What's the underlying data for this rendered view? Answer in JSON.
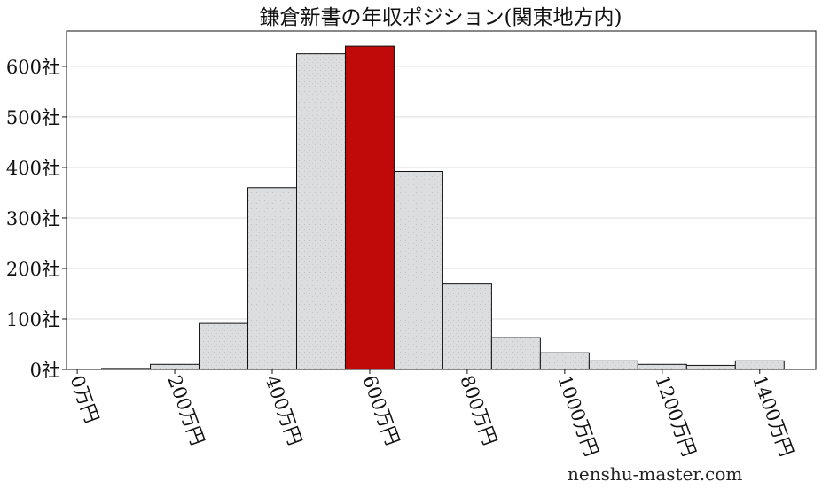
{
  "chart_data": {
    "type": "bar",
    "title": "鎌倉新書の年収ポジション(関東地方内)",
    "x_unit_suffix": "万円",
    "y_unit_suffix": "社",
    "bin_centers": [
      100,
      200,
      300,
      400,
      500,
      600,
      700,
      800,
      900,
      1000,
      1100,
      1200,
      1300,
      1400
    ],
    "bin_width": 100,
    "values": [
      2,
      10,
      91,
      360,
      625,
      640,
      392,
      169,
      63,
      33,
      17,
      10,
      8,
      17
    ],
    "highlight_bin": 600,
    "xticks": [
      0,
      200,
      400,
      600,
      800,
      1000,
      1200,
      1400
    ],
    "xtick_labels": [
      "0万円",
      "200万円",
      "400万円",
      "600万円",
      "800万円",
      "1000万円",
      "1200万円",
      "1400万円"
    ],
    "yticks": [
      0,
      100,
      200,
      300,
      400,
      500,
      600
    ],
    "ytick_labels": [
      "0社",
      "100社",
      "200社",
      "300社",
      "400社",
      "500社",
      "600社"
    ],
    "xlim": [
      -22,
      1515
    ],
    "ylim": [
      0,
      670
    ],
    "grid": "horizontal",
    "colors": {
      "bar": "#dcdddf",
      "highlight": "#c00a0a",
      "edge": "#111111"
    }
  },
  "watermark": "nenshu-master.com"
}
